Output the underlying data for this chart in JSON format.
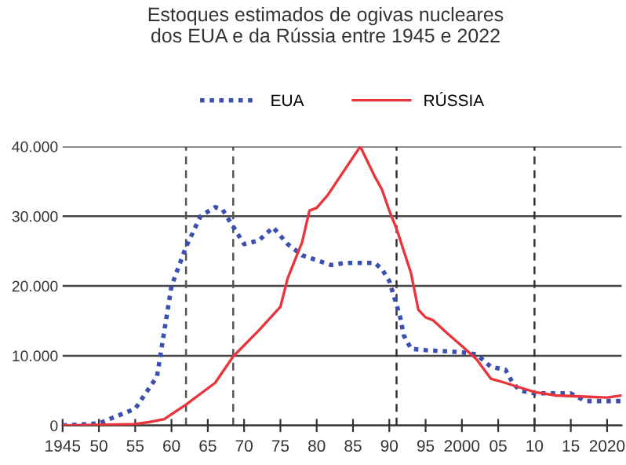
{
  "chart_data": {
    "type": "line",
    "title": "Estoques estimados de ogivas nucleares\ndos EUA e da Rússia entre 1945 e 2022",
    "xlim": [
      1945,
      2022
    ],
    "xticks": [
      {
        "value": 1945,
        "label": "1945"
      },
      {
        "value": 1950,
        "label": "50"
      },
      {
        "value": 1955,
        "label": "55"
      },
      {
        "value": 1960,
        "label": "60"
      },
      {
        "value": 1965,
        "label": "65"
      },
      {
        "value": 1970,
        "label": "70"
      },
      {
        "value": 1975,
        "label": "75"
      },
      {
        "value": 1980,
        "label": "80"
      },
      {
        "value": 1985,
        "label": "85"
      },
      {
        "value": 1990,
        "label": "90"
      },
      {
        "value": 1995,
        "label": "95"
      },
      {
        "value": 2000,
        "label": "2000"
      },
      {
        "value": 2005,
        "label": "05"
      },
      {
        "value": 2010,
        "label": "10"
      },
      {
        "value": 2015,
        "label": "15"
      },
      {
        "value": 2020,
        "label": "2020"
      }
    ],
    "ylim": [
      0,
      40000
    ],
    "yticks": [
      {
        "value": 0,
        "label": "0"
      },
      {
        "value": 10000,
        "label": "10.000"
      },
      {
        "value": 20000,
        "label": "20.000"
      },
      {
        "value": 30000,
        "label": "30.000"
      },
      {
        "value": 40000,
        "label": "40.000"
      }
    ],
    "grid": "y",
    "legend": "top",
    "series": [
      {
        "name": "EUA",
        "color": "#3a4fb0",
        "line_style": "dotted",
        "x": [
          1945,
          1950,
          1955,
          1958,
          1960,
          1962,
          1964,
          1966,
          1967,
          1970,
          1972,
          1974,
          1976,
          1978,
          1980,
          1982,
          1984,
          1988,
          1989,
          1990,
          1991,
          1991.5,
          1992,
          1993,
          1995,
          2000,
          2002,
          2004,
          2006,
          2007,
          2008,
          2010,
          2015,
          2017,
          2022
        ],
        "values": [
          0,
          300,
          2400,
          7000,
          20000,
          25600,
          30000,
          31300,
          31000,
          26000,
          26500,
          28400,
          26000,
          24400,
          23700,
          23000,
          23300,
          23300,
          22400,
          20700,
          17300,
          15500,
          12900,
          11000,
          10800,
          10500,
          10200,
          8400,
          8000,
          6100,
          5000,
          4600,
          4600,
          3500,
          3500
        ]
      },
      {
        "name": "RÚSSIA",
        "color": "#e8343a",
        "line_style": "solid",
        "x": [
          1945,
          1955,
          1957,
          1959,
          1960,
          1962,
          1966,
          1968.5,
          1972,
          1975,
          1976,
          1978,
          1979,
          1980,
          1981.5,
          1986,
          1988,
          1989,
          1990,
          1991,
          1993,
          1994,
          1995,
          1996,
          1998,
          2000,
          2002,
          2004,
          2006,
          2010,
          2013,
          2020,
          2022
        ],
        "values": [
          0,
          200,
          500,
          900,
          1600,
          3000,
          6100,
          9900,
          13600,
          17000,
          21100,
          26300,
          30800,
          31200,
          33000,
          40000,
          35700,
          33800,
          30800,
          28200,
          21800,
          16600,
          15500,
          15100,
          13200,
          11400,
          9500,
          6700,
          6100,
          4800,
          4300,
          4000,
          4300
        ]
      }
    ],
    "ref_lines": [
      {
        "axis": "x",
        "value": 1962,
        "color": "#555555",
        "line_style": "dashed"
      },
      {
        "axis": "x",
        "value": 1968.5,
        "color": "#555555",
        "line_style": "dashed"
      },
      {
        "axis": "x",
        "value": 1991,
        "color": "#333333",
        "line_style": "dashed"
      },
      {
        "axis": "x",
        "value": 2010,
        "color": "#333333",
        "line_style": "dashed"
      }
    ]
  }
}
